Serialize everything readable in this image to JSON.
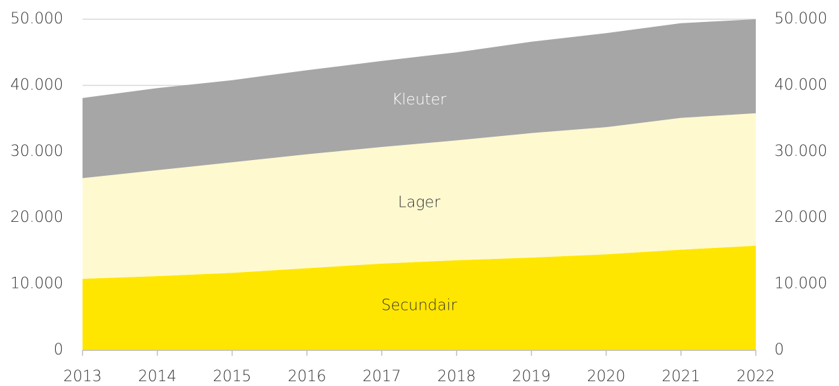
{
  "chart_data": {
    "type": "stacked_area",
    "categories": [
      "2013",
      "2014",
      "2015",
      "2016",
      "2017",
      "2018",
      "2019",
      "2020",
      "2021",
      "2022"
    ],
    "series": [
      {
        "name": "Secundair",
        "color": "#ffe600",
        "values": [
          10800,
          11200,
          11700,
          12400,
          13100,
          13600,
          14000,
          14500,
          15200,
          15800
        ]
      },
      {
        "name": "Lager",
        "color": "#fff9d0",
        "values": [
          15200,
          16000,
          16700,
          17200,
          17600,
          18100,
          18800,
          19200,
          19900,
          20000
        ]
      },
      {
        "name": "Kleuter",
        "color": "#a6a6a6",
        "values": [
          12100,
          12400,
          12400,
          12700,
          13000,
          13300,
          13800,
          14200,
          14300,
          14200
        ]
      }
    ],
    "ylim": [
      0,
      50000
    ],
    "yticks": [
      0,
      {
        "value": 10000,
        "label": "10.000"
      },
      {
        "value": 20000,
        "label": "20.000"
      },
      {
        "value": 30000,
        "label": "30.000"
      },
      {
        "value": 40000,
        "label": "40.000"
      },
      {
        "value": 50000,
        "label": "50.000"
      }
    ],
    "y2lim": [
      0,
      50000
    ],
    "y2ticks": [
      0,
      {
        "value": 10000,
        "label": "10.000"
      },
      {
        "value": 20000,
        "label": "20.000"
      },
      {
        "value": 30000,
        "label": "30.000"
      },
      {
        "value": 40000,
        "label": "40.000"
      },
      {
        "value": 50000,
        "label": "50.000"
      }
    ],
    "grid": true
  }
}
